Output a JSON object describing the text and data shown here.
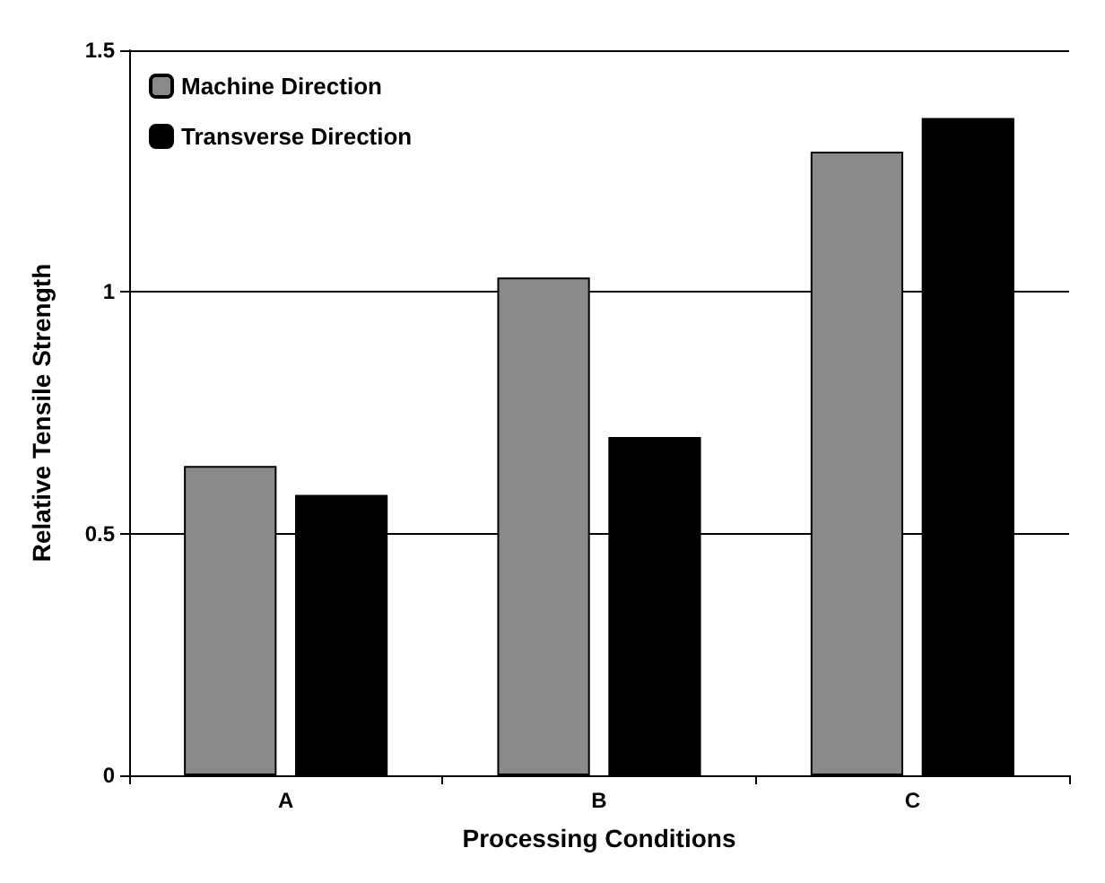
{
  "chart_data": {
    "type": "bar",
    "xlabel": "Processing Conditions",
    "ylabel": "Relative Tensile Strength",
    "categories": [
      "A",
      "B",
      "C"
    ],
    "series": [
      {
        "name": "Machine Direction",
        "color": "#8a8a8a",
        "values": [
          0.64,
          1.03,
          1.29
        ]
      },
      {
        "name": "Transverse Direction",
        "color": "#000000",
        "values": [
          0.58,
          0.7,
          1.36
        ]
      }
    ],
    "ylim": [
      0,
      1.5
    ],
    "yticks": [
      0,
      0.5,
      1,
      1.5
    ],
    "grid": "y",
    "legend": "top left"
  }
}
